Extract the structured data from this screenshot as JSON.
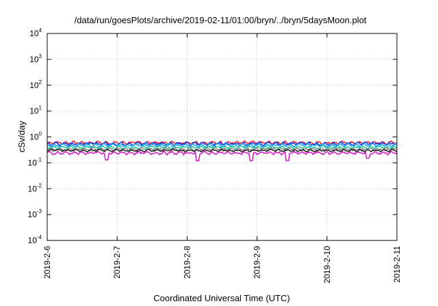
{
  "chart_data": {
    "type": "line",
    "title": "/data/run/goesPlots/archive/2019-02-11/01:00/bryn/../bryn/5daysMoon.plot",
    "xlabel": "Coordinated Universal Time (UTC)",
    "ylabel": "cSv/day",
    "y_scale": "log",
    "ylim": [
      0.0001,
      10000
    ],
    "xlim": [
      "2019-2-6",
      "2019-2-11"
    ],
    "x_tick_labels": [
      "2019-2-6",
      "2019-2-7",
      "2019-2-8",
      "2019-2-9",
      "2019-2-10",
      "2019-2-11"
    ],
    "y_tick_labels": [
      {
        "base": "10",
        "exp": "4"
      },
      {
        "base": "10",
        "exp": "3"
      },
      {
        "base": "10",
        "exp": "2"
      },
      {
        "base": "10",
        "exp": "1"
      },
      {
        "base": "10",
        "exp": "0"
      },
      {
        "base": "10",
        "exp": "-1"
      },
      {
        "base": "10",
        "exp": "-2"
      },
      {
        "base": "10",
        "exp": "-3"
      },
      {
        "base": "10",
        "exp": "-4"
      }
    ],
    "grid": true,
    "legend": "none",
    "series": [
      {
        "color": "#e8202a",
        "baseline": 0.6,
        "amplitude": 0.1,
        "dips": []
      },
      {
        "color": "#1a3cf0",
        "baseline": 0.55,
        "amplitude": 0.1,
        "dips": []
      },
      {
        "color": "#1aa0f0",
        "baseline": 0.48,
        "amplitude": 0.09,
        "dips": []
      },
      {
        "color": "#20c8a0",
        "baseline": 0.4,
        "amplitude": 0.06,
        "dips": []
      },
      {
        "color": "#8a8a8a",
        "baseline": 0.34,
        "amplitude": 0.05,
        "dips": []
      },
      {
        "color": "#222222",
        "baseline": 0.3,
        "amplitude": 0.04,
        "dips": []
      },
      {
        "color": "#d820c8",
        "baseline": 0.24,
        "amplitude": 0.04,
        "dips": [
          {
            "x": "2019-2-6 20:30",
            "y": 0.13
          },
          {
            "x": "2019-2-8 03:30",
            "y": 0.12
          },
          {
            "x": "2019-2-8 22:00",
            "y": 0.12
          },
          {
            "x": "2019-2-9 10:30",
            "y": 0.12
          },
          {
            "x": "2019-2-10 14:00",
            "y": 0.15
          }
        ]
      }
    ]
  }
}
